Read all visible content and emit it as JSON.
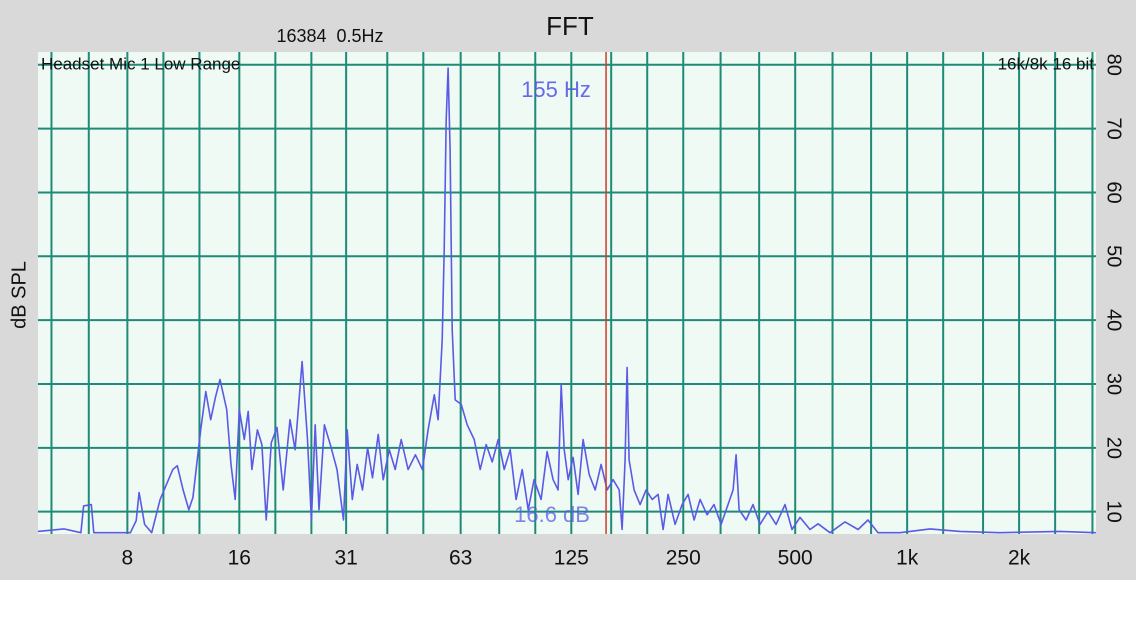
{
  "chart_data": {
    "type": "line",
    "title": "FFT",
    "subtitle": "16384  0.5Hz",
    "input_label": "Headset Mic 1 Low Range",
    "format_label": "16k/8k 16 bit",
    "ylabel": "dB SPL",
    "x_scale": "log",
    "xlim": [
      4.6,
      3220
    ],
    "ylim": [
      6.5,
      82
    ],
    "xticks": [
      8,
      16,
      31,
      63,
      125,
      250,
      500,
      {
        "value": 1000,
        "label": "1k"
      },
      {
        "value": 2000,
        "label": "2k"
      }
    ],
    "xgrid": [
      5,
      6.3,
      10,
      12.5,
      20,
      25,
      40,
      50,
      80,
      100,
      160,
      200,
      315,
      400,
      630,
      800,
      1250,
      1600,
      2500,
      3150
    ],
    "yticks": [
      10,
      20,
      30,
      40,
      50,
      60,
      70,
      80
    ],
    "grid": true,
    "grid_color": "#1f8a78",
    "plot_background": "#eefaf3",
    "x": [
      4.6,
      5.4,
      6.0,
      6.1,
      6.4,
      6.5,
      8.15,
      8.45,
      8.6,
      8.9,
      9.3,
      9.8,
      10.6,
      10.9,
      11.3,
      11.7,
      12.0,
      12.6,
      13.0,
      13.4,
      13.8,
      14.2,
      14.8,
      15.2,
      15.6,
      16.0,
      16.5,
      16.9,
      17.3,
      17.9,
      18.4,
      18.9,
      19.5,
      20.2,
      21.0,
      21.9,
      22.6,
      23.6,
      24.4,
      25.0,
      25.6,
      26.2,
      27.1,
      28.1,
      29.3,
      30.5,
      31.2,
      32.2,
      33.2,
      34.3,
      35.4,
      36.5,
      37.8,
      39.0,
      40.5,
      42.0,
      43.6,
      45.5,
      47.6,
      49.7,
      51.5,
      53.5,
      54.8,
      56.2,
      56.9,
      57.6,
      58.3,
      59.0,
      59.8,
      60.9,
      63.2,
      65.6,
      68.5,
      71.1,
      73.8,
      76.6,
      79.5,
      82.5,
      85.6,
      88.8,
      92.2,
      95.7,
      99.3,
      103.7,
      107.6,
      111.7,
      115.2,
      117.4,
      119.6,
      122.6,
      126.4,
      130.4,
      134.5,
      139.6,
      144.9,
      150.3,
      156.1,
      161.9,
      168.1,
      171.2,
      174.4,
      176.6,
      178.8,
      184.4,
      191.4,
      198.6,
      206.2,
      213.9,
      220.7,
      227.6,
      237.7,
      248.2,
      257.6,
      267.4,
      277.5,
      289.8,
      302.5,
      316.0,
      329.9,
      340.3,
      346.8,
      353.2,
      368.9,
      385.1,
      402.2,
      422.5,
      444.1,
      469.4,
      490.3,
      515.2,
      547.9,
      576.1,
      620.1,
      680.7,
      738.1,
      784.9,
      834.9,
      956.5,
      1152,
      1387,
      1776,
      2574,
      3218
    ],
    "series": [
      {
        "color": "#5a5ae6",
        "values": [
          6.9,
          7.3,
          6.7,
          10.9,
          11.1,
          6.7,
          6.7,
          8.6,
          13.0,
          8.0,
          6.7,
          11.9,
          16.6,
          17.2,
          13.4,
          10.3,
          12.2,
          22.8,
          28.8,
          24.4,
          27.9,
          30.7,
          26.0,
          17.4,
          11.9,
          26.0,
          21.3,
          25.7,
          16.6,
          22.8,
          20.5,
          8.7,
          20.8,
          23.2,
          13.4,
          24.4,
          19.7,
          33.5,
          21.3,
          8.7,
          23.6,
          10.3,
          23.6,
          20.5,
          16.6,
          8.7,
          22.8,
          11.9,
          17.4,
          13.4,
          20.0,
          15.3,
          22.1,
          15.0,
          19.7,
          16.6,
          21.3,
          16.6,
          18.9,
          16.6,
          22.8,
          28.3,
          24.4,
          36.9,
          51.0,
          71.4,
          79.5,
          66.7,
          38.5,
          27.5,
          26.8,
          23.6,
          21.3,
          16.6,
          20.5,
          17.8,
          21.3,
          16.6,
          19.7,
          11.9,
          16.6,
          10.3,
          15.0,
          11.9,
          19.4,
          15.0,
          13.4,
          29.9,
          19.7,
          15.0,
          18.5,
          12.7,
          21.3,
          15.8,
          13.4,
          17.4,
          13.4,
          15.0,
          13.4,
          7.2,
          18.1,
          32.6,
          18.1,
          13.4,
          11.1,
          13.4,
          11.9,
          12.7,
          7.2,
          12.7,
          8.0,
          11.1,
          12.7,
          8.7,
          11.9,
          9.5,
          11.1,
          8.0,
          11.1,
          13.4,
          18.9,
          10.3,
          8.7,
          11.1,
          8.0,
          10.0,
          8.0,
          11.1,
          7.2,
          9.1,
          7.2,
          8.1,
          6.7,
          8.4,
          7.2,
          8.7,
          6.7,
          6.7,
          7.3,
          6.9,
          6.7,
          6.9,
          6.7
        ]
      }
    ],
    "marker": {
      "x": 155,
      "label": "155 Hz",
      "level_label": "16.6 dB",
      "color": "#d23a2a",
      "label_color": "#5a5ae6"
    }
  }
}
